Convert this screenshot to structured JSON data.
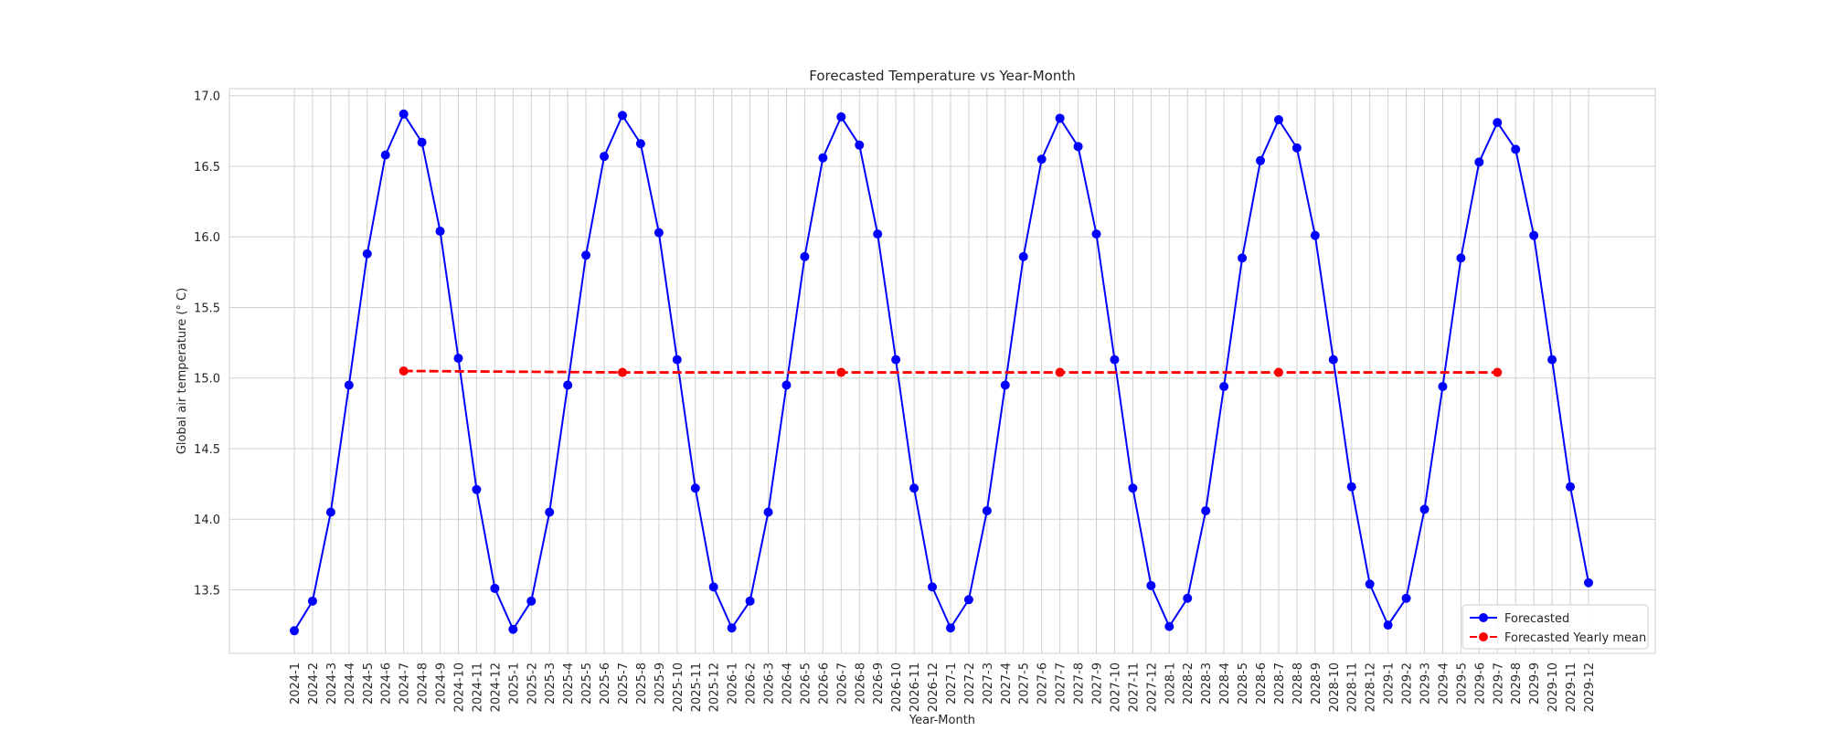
{
  "chart_data": {
    "type": "line",
    "title": "Forecasted Temperature vs Year-Month",
    "xlabel": "Year-Month",
    "ylabel": "Global air temperature (° C)",
    "ylim": [
      13.05,
      17.05
    ],
    "yticks": [
      "13.5",
      "14.0",
      "14.5",
      "15.0",
      "15.5",
      "16.0",
      "16.5",
      "17.0"
    ],
    "grid": true,
    "legend_position": "bottom-right",
    "categories": [
      "2024-1",
      "2024-2",
      "2024-3",
      "2024-4",
      "2024-5",
      "2024-6",
      "2024-7",
      "2024-8",
      "2024-9",
      "2024-10",
      "2024-11",
      "2024-12",
      "2025-1",
      "2025-2",
      "2025-3",
      "2025-4",
      "2025-5",
      "2025-6",
      "2025-7",
      "2025-8",
      "2025-9",
      "2025-10",
      "2025-11",
      "2025-12",
      "2026-1",
      "2026-2",
      "2026-3",
      "2026-4",
      "2026-5",
      "2026-6",
      "2026-7",
      "2026-8",
      "2026-9",
      "2026-10",
      "2026-11",
      "2026-12",
      "2027-1",
      "2027-2",
      "2027-3",
      "2027-4",
      "2027-5",
      "2027-6",
      "2027-7",
      "2027-8",
      "2027-9",
      "2027-10",
      "2027-11",
      "2027-12",
      "2028-1",
      "2028-2",
      "2028-3",
      "2028-4",
      "2028-5",
      "2028-6",
      "2028-7",
      "2028-8",
      "2028-9",
      "2028-10",
      "2028-11",
      "2028-12",
      "2029-1",
      "2029-2",
      "2029-3",
      "2029-4",
      "2029-5",
      "2029-6",
      "2029-7",
      "2029-8",
      "2029-9",
      "2029-10",
      "2029-11",
      "2029-12"
    ],
    "series": [
      {
        "name": "Forecasted",
        "color": "#0000ff",
        "style": "solid",
        "values": [
          13.21,
          13.42,
          14.05,
          14.95,
          15.88,
          16.58,
          16.87,
          16.67,
          16.04,
          15.14,
          14.21,
          13.51,
          13.22,
          13.42,
          14.05,
          14.95,
          15.87,
          16.57,
          16.86,
          16.66,
          16.03,
          15.13,
          14.22,
          13.52,
          13.23,
          13.42,
          14.05,
          14.95,
          15.86,
          16.56,
          16.85,
          16.65,
          16.02,
          15.13,
          14.22,
          13.52,
          13.23,
          13.43,
          14.06,
          14.95,
          15.86,
          16.55,
          16.84,
          16.64,
          16.02,
          15.13,
          14.22,
          13.53,
          13.24,
          13.44,
          14.06,
          14.94,
          15.85,
          16.54,
          16.83,
          16.63,
          16.01,
          15.13,
          14.23,
          13.54,
          13.25,
          13.44,
          14.07,
          14.94,
          15.85,
          16.53,
          16.81,
          16.62,
          16.01,
          15.13,
          14.23,
          13.55
        ]
      },
      {
        "name": "Forecasted Yearly mean",
        "color": "#ff0000",
        "style": "dashed",
        "x": [
          "2024-7",
          "2025-7",
          "2026-7",
          "2027-7",
          "2028-7",
          "2029-7"
        ],
        "values": [
          15.05,
          15.04,
          15.04,
          15.04,
          15.04,
          15.04
        ]
      }
    ]
  }
}
